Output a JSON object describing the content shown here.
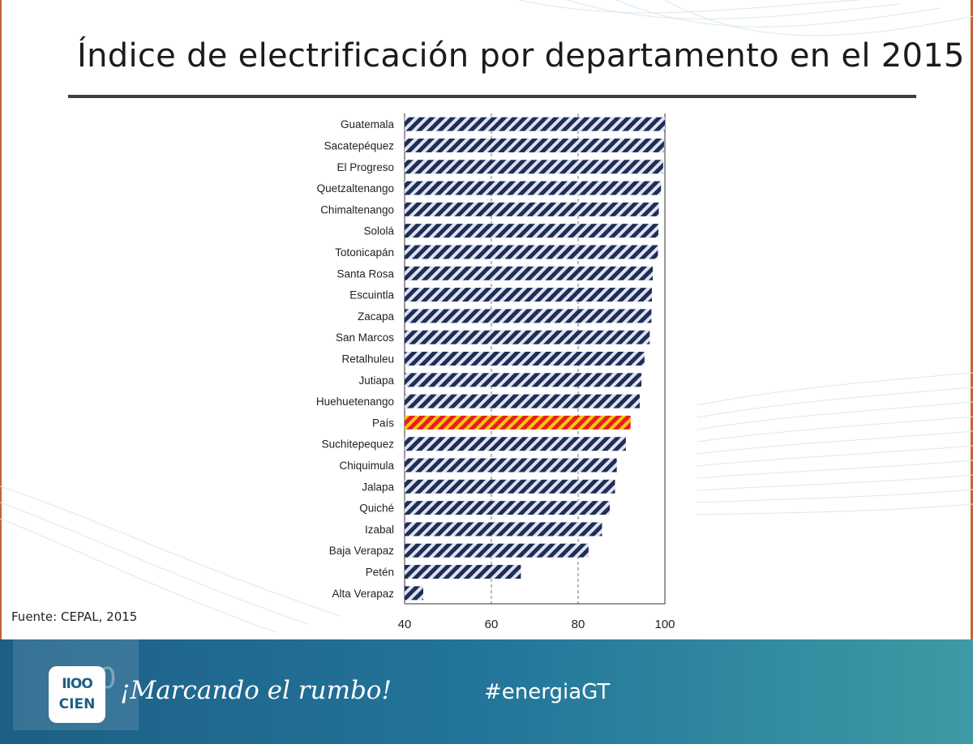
{
  "slide": {
    "title": "Índice de electrificación por departamento en el 2015",
    "source": "Fuente: CEPAL, 2015"
  },
  "footer": {
    "slogan": "¡Marcando el rumbo!",
    "hashtag": "#energiaGT",
    "logo_text": "CIEN",
    "logo_mark": "IIOO"
  },
  "chart_data": {
    "type": "bar",
    "orientation": "horizontal",
    "categories": [
      "Guatemala",
      "Sacatepéquez",
      "El Progreso",
      "Quetzaltenango",
      "Chimaltenango",
      "Sololá",
      "Totonicapán",
      "Santa Rosa",
      "Escuintla",
      "Zacapa",
      "San Marcos",
      "Retalhuleu",
      "Jutiapa",
      "Huehuetenango",
      "País",
      "Suchitepequez",
      "Chiquimula",
      "Jalapa",
      "Quiché",
      "Izabal",
      "Baja Verapaz",
      "Petén",
      "Alta Verapaz"
    ],
    "values": [
      100,
      99.8,
      99.6,
      99.1,
      98.6,
      98.5,
      98.4,
      97.2,
      97.0,
      96.9,
      96.5,
      95.3,
      94.6,
      94.2,
      92.1,
      91.0,
      88.9,
      88.5,
      87.3,
      85.5,
      82.4,
      66.8,
      44.3
    ],
    "highlight": "País",
    "colors": {
      "bar": "#1f2d57",
      "bar_alt": "#dde3ef",
      "highlight": "#e81e1e",
      "highlight_alt": "#f6c514",
      "grid": "#777777"
    },
    "xlim": [
      40,
      100
    ],
    "xticks": [
      40,
      60,
      80,
      100
    ],
    "grid": true,
    "title": "",
    "xlabel": "",
    "ylabel": ""
  }
}
